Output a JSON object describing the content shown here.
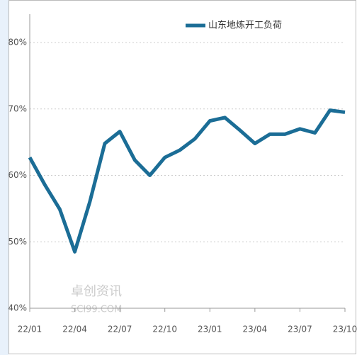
{
  "chart_data": {
    "type": "line",
    "categories": [
      "22/01",
      null,
      null,
      "22/04",
      null,
      null,
      "22/07",
      null,
      null,
      "22/10",
      null,
      null,
      "23/01",
      null,
      null,
      "23/04",
      null,
      null,
      "23/07",
      null,
      null,
      "23/10"
    ],
    "series": [
      {
        "name": "山东地炼开工负荷",
        "color": "#1b6d96",
        "values": [
          62.7,
          58.6,
          54.9,
          48.5,
          56,
          64.8,
          66.6,
          62.3,
          60,
          62.7,
          63.8,
          65.5,
          68.2,
          68.7,
          66.8,
          64.8,
          66.2,
          66.2,
          67,
          66.4,
          69.8,
          69.5
        ]
      }
    ],
    "ylim": [
      40,
      80
    ],
    "yticks": [
      {
        "value": 40,
        "label": "40%"
      },
      {
        "value": 50,
        "label": "50%"
      },
      {
        "value": 60,
        "label": "60%"
      },
      {
        "value": 70,
        "label": "70%"
      },
      {
        "value": 80,
        "label": "80%"
      }
    ],
    "grid": true,
    "legend": "top",
    "watermark": [
      "卓创资讯",
      "SCI99.COM"
    ]
  }
}
